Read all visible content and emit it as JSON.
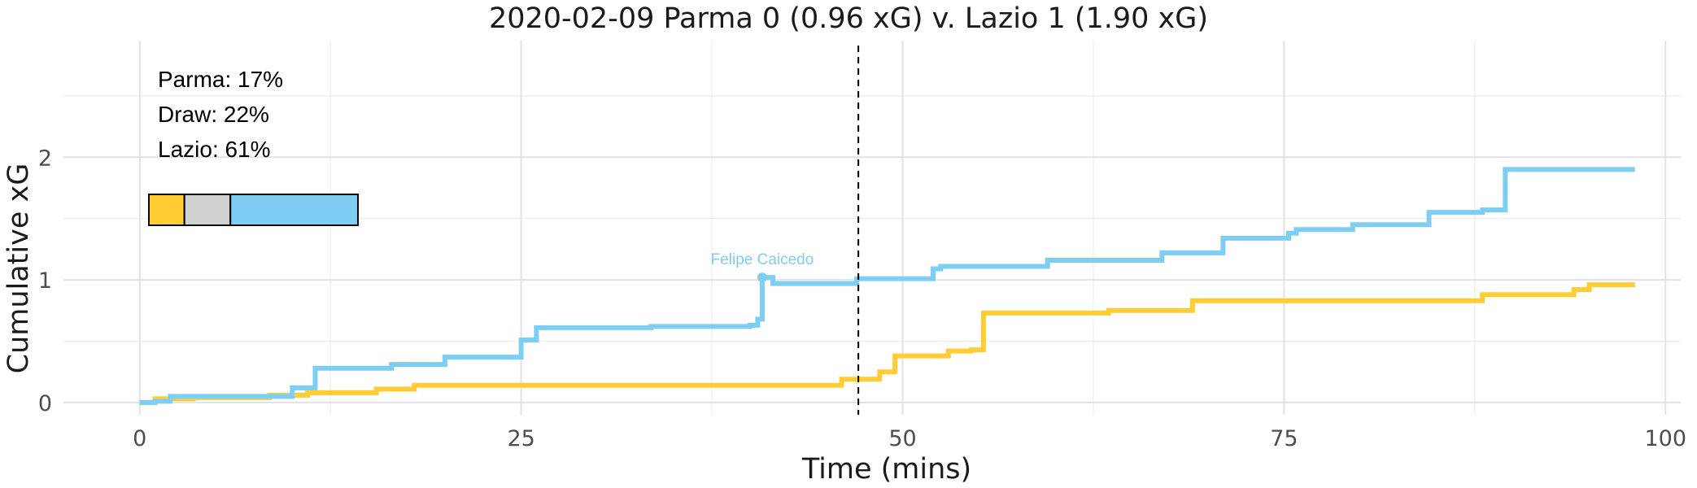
{
  "chart_data": {
    "type": "line",
    "title": "2020-02-09 Parma 0 (0.96 xG) v. Lazio 1 (1.90 xG)",
    "xlabel": "Time (mins)",
    "ylabel": "Cumulative xG",
    "xlim": [
      -5,
      101
    ],
    "ylim": [
      -0.1,
      2.95
    ],
    "x_ticks": [
      0,
      25,
      50,
      75,
      100
    ],
    "y_ticks": [
      0,
      1,
      2
    ],
    "grid": true,
    "step": true,
    "colors": {
      "Parma": "#FFCC33",
      "Draw": "#D0D0D0",
      "Lazio": "#7ECEF4"
    },
    "series": [
      {
        "name": "Parma",
        "color": "#FFCC33",
        "points": [
          [
            0,
            0
          ],
          [
            1,
            0.03
          ],
          [
            3.5,
            0.04
          ],
          [
            8.5,
            0.06
          ],
          [
            11,
            0.08
          ],
          [
            15.5,
            0.11
          ],
          [
            18,
            0.14
          ],
          [
            46,
            0.19
          ],
          [
            48.5,
            0.25
          ],
          [
            49.5,
            0.38
          ],
          [
            53,
            0.42
          ],
          [
            54.5,
            0.43
          ],
          [
            55.3,
            0.73
          ],
          [
            63.5,
            0.75
          ],
          [
            69,
            0.83
          ],
          [
            88,
            0.88
          ],
          [
            94,
            0.92
          ],
          [
            95,
            0.96
          ],
          [
            98,
            0.96
          ]
        ]
      },
      {
        "name": "Lazio",
        "color": "#7ECEF4",
        "points": [
          [
            0,
            0
          ],
          [
            1,
            0.01
          ],
          [
            2,
            0.05
          ],
          [
            10,
            0.12
          ],
          [
            11.5,
            0.28
          ],
          [
            16.5,
            0.31
          ],
          [
            20,
            0.37
          ],
          [
            25,
            0.51
          ],
          [
            26,
            0.61
          ],
          [
            33.5,
            0.62
          ],
          [
            40,
            0.63
          ],
          [
            40.5,
            0.68
          ],
          [
            40.8,
            1.02
          ],
          [
            41.5,
            0.97
          ],
          [
            47,
            1.01
          ],
          [
            52,
            1.09
          ],
          [
            52.5,
            1.11
          ],
          [
            59.5,
            1.16
          ],
          [
            67,
            1.22
          ],
          [
            71,
            1.34
          ],
          [
            75.3,
            1.38
          ],
          [
            75.8,
            1.41
          ],
          [
            79.5,
            1.45
          ],
          [
            84.5,
            1.55
          ],
          [
            88,
            1.57
          ],
          [
            89.5,
            1.9
          ],
          [
            98,
            1.9
          ]
        ]
      }
    ],
    "vline_x": 47.1,
    "goal_marker": {
      "x": 40.8,
      "y": 1.02,
      "label": "Felipe Caicedo",
      "color": "#7ECEF4"
    },
    "win_probability": [
      {
        "label": "Parma: 17%",
        "team": "Parma",
        "value": 0.17,
        "color": "#FFCC33"
      },
      {
        "label": "Draw: 22%",
        "team": "Draw",
        "value": 0.22,
        "color": "#D0D0D0"
      },
      {
        "label": "Lazio: 61%",
        "team": "Lazio",
        "value": 0.61,
        "color": "#7ECEF4"
      }
    ]
  }
}
